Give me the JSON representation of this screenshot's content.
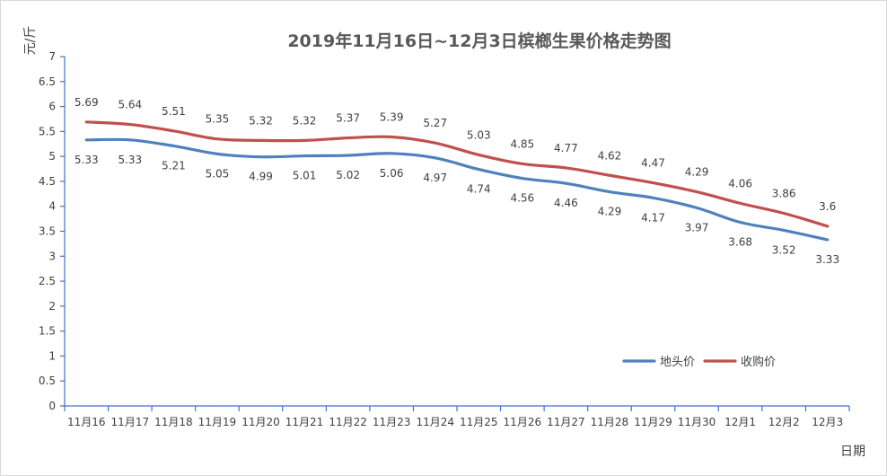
{
  "chart_data": {
    "type": "line",
    "title": "2019年11月16日~12月3日槟榔生果价格走势图",
    "xlabel": "日期",
    "ylabel": "元/斤",
    "ylim": [
      0,
      7
    ],
    "yticks": [
      "0",
      "0.5",
      "1",
      "1.5",
      "2",
      "2.5",
      "3",
      "3.5",
      "4",
      "4.5",
      "5",
      "5.5",
      "6",
      "6.5",
      "7"
    ],
    "grid": false,
    "legend_position": "bottom-right",
    "categories": [
      "11月16",
      "11月17",
      "11月18",
      "11月19",
      "11月20",
      "11月21",
      "11月22",
      "11月23",
      "11月24",
      "11月25",
      "11月26",
      "11月27",
      "11月28",
      "11月29",
      "11月30",
      "12月1",
      "12月2",
      "12月3"
    ],
    "series": [
      {
        "name": "地头价",
        "color": "#4f81bd",
        "values": [
          5.33,
          5.33,
          5.21,
          5.05,
          4.99,
          5.01,
          5.02,
          5.06,
          4.97,
          4.74,
          4.56,
          4.46,
          4.29,
          4.17,
          3.97,
          3.68,
          3.52,
          3.33
        ],
        "labels": [
          "5.33",
          "5.33",
          "5.21",
          "5.05",
          "4.99",
          "5.01",
          "5.02",
          "5.06",
          "4.97",
          "4.74",
          "4.56",
          "4.46",
          "4.29",
          "4.17",
          "3.97",
          "3.68",
          "3.52",
          "3.33"
        ]
      },
      {
        "name": "收购价",
        "color": "#c0504d",
        "values": [
          5.69,
          5.64,
          5.51,
          5.35,
          5.32,
          5.32,
          5.37,
          5.39,
          5.27,
          5.03,
          4.85,
          4.77,
          4.62,
          4.47,
          4.29,
          4.06,
          3.86,
          3.6
        ],
        "labels": [
          "5.69",
          "5.64",
          "5.51",
          "5.35",
          "5.32",
          "5.32",
          "5.37",
          "5.39",
          "5.27",
          "5.03",
          "4.85",
          "4.77",
          "4.62",
          "4.47",
          "4.29",
          "4.06",
          "3.86",
          "3.6"
        ]
      }
    ]
  }
}
